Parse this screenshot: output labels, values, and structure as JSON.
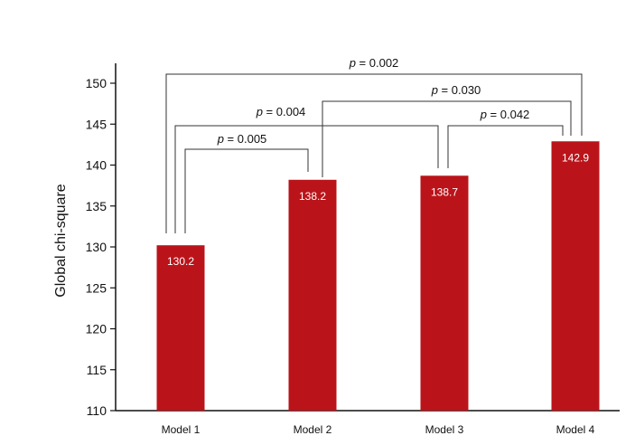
{
  "chart_data": {
    "type": "bar",
    "categories": [
      "Model 1",
      "Model 2",
      "Model 3",
      "Model 4"
    ],
    "values": [
      130.2,
      138.2,
      138.7,
      142.9
    ],
    "data_labels": [
      "130.2",
      "138.2",
      "138.7",
      "142.9"
    ],
    "ylabel": "Global chi-square",
    "xlabel": "",
    "ylim": [
      110,
      153
    ],
    "yticks": [
      110,
      115,
      120,
      125,
      130,
      135,
      140,
      145,
      150
    ],
    "bar_color": "#BA141A",
    "grid": false,
    "annotations": [
      {
        "from": "Model 1",
        "to": "Model 2",
        "p_symbol": "p",
        "p_text": " = 0.005"
      },
      {
        "from": "Model 1",
        "to": "Model 3",
        "p_symbol": "p",
        "p_text": " = 0.004"
      },
      {
        "from": "Model 3",
        "to": "Model 4",
        "p_symbol": "p",
        "p_text": " = 0.042"
      },
      {
        "from": "Model 2",
        "to": "Model 4",
        "p_symbol": "p",
        "p_text": " = 0.030"
      },
      {
        "from": "Model 1",
        "to": "Model 4",
        "p_symbol": "p",
        "p_text": " = 0.002"
      }
    ]
  }
}
